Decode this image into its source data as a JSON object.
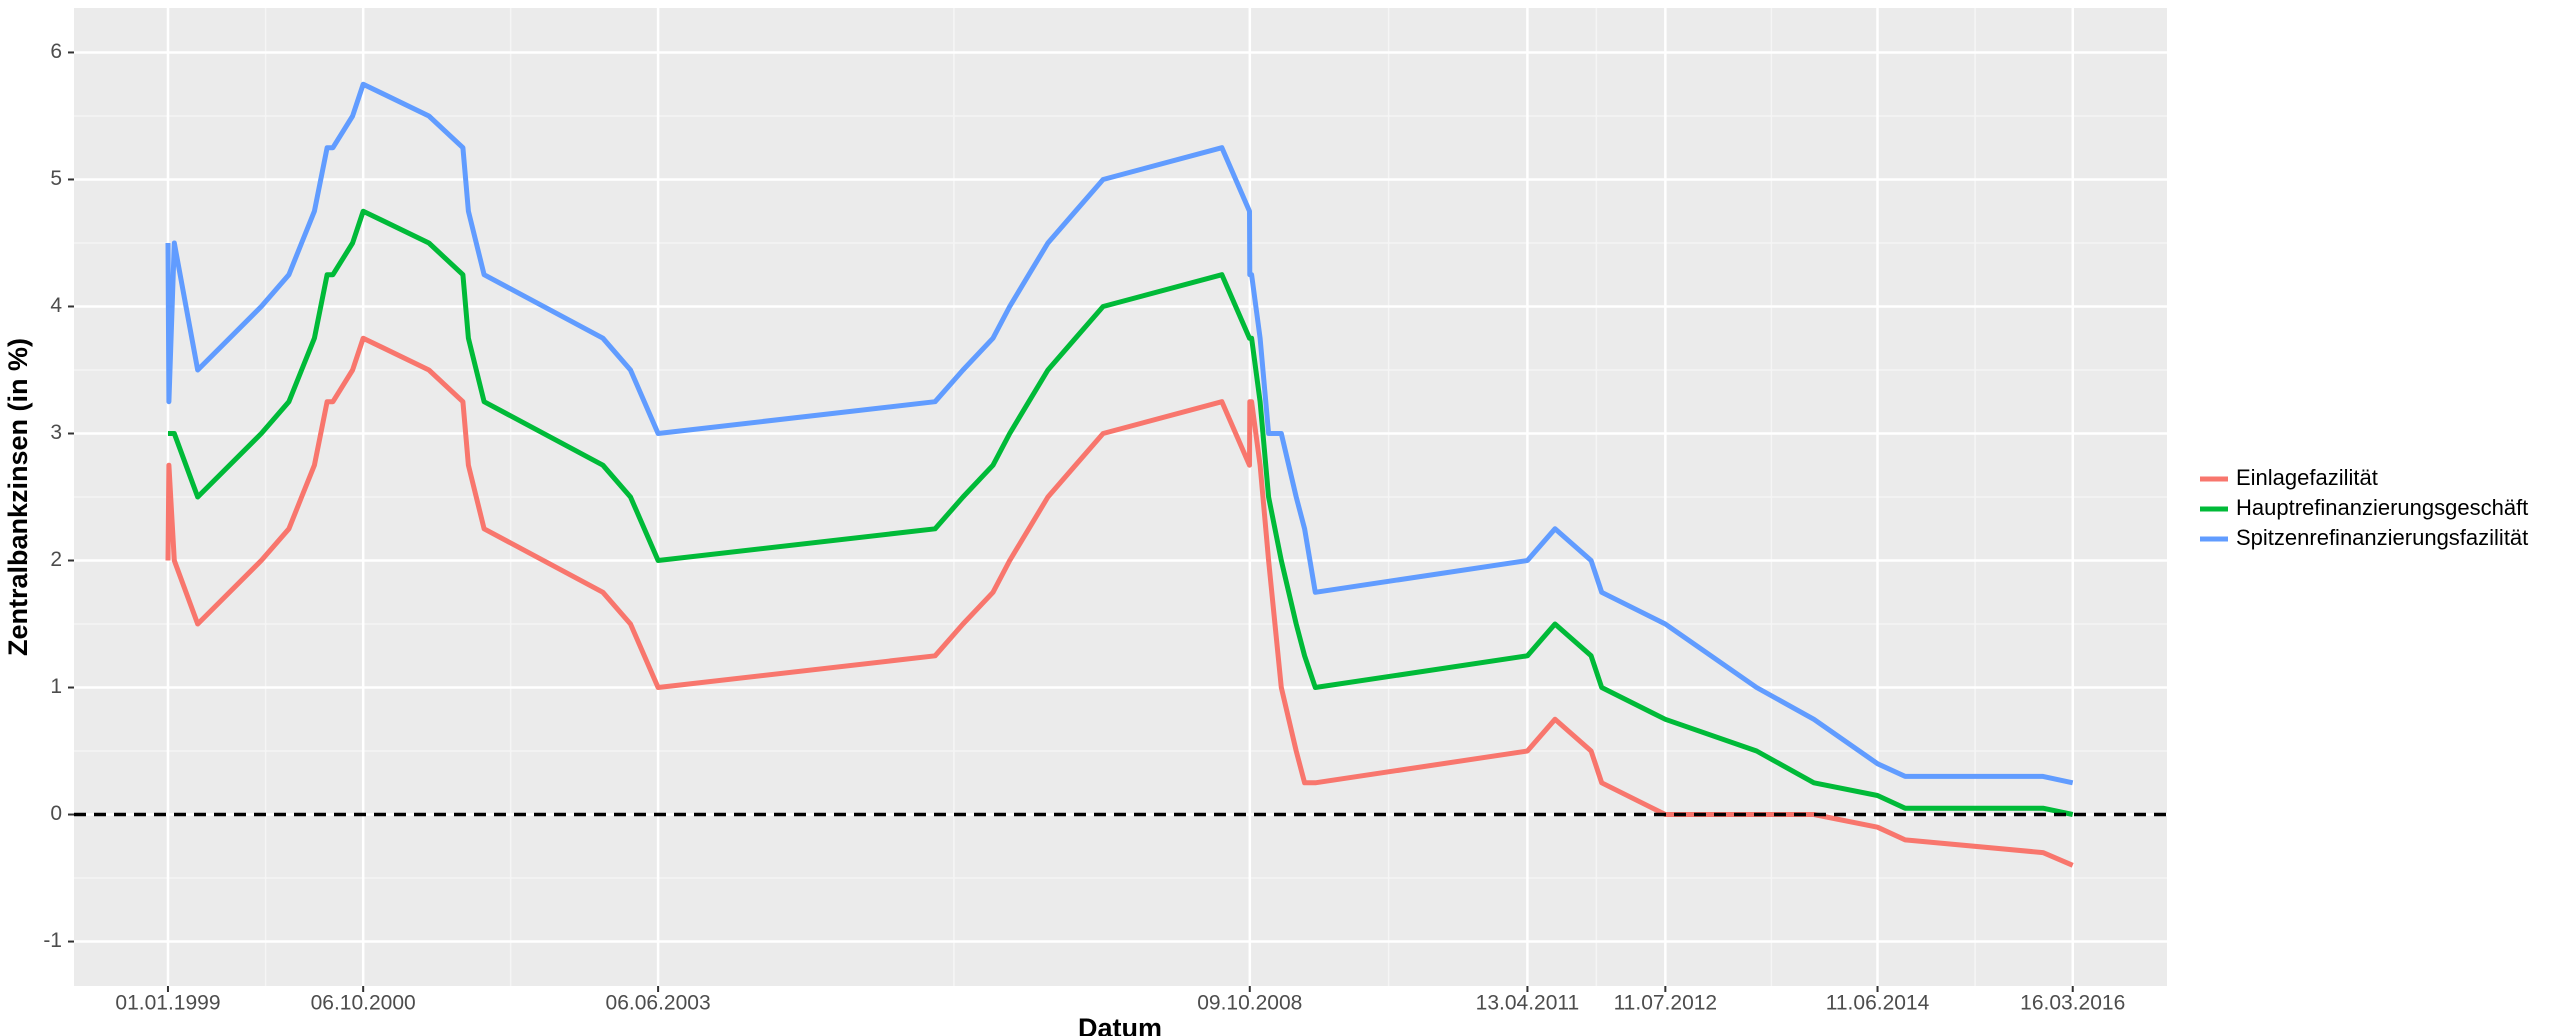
{
  "chart_data": {
    "type": "line",
    "x_label": "Datum",
    "y_label": "Zentralbankzinsen (in %)",
    "x": [
      "01.01.1999",
      "04.01.1999",
      "22.01.1999",
      "09.04.1999",
      "05.11.1999",
      "04.02.2000",
      "17.03.2000",
      "28.04.2000",
      "09.06.2000",
      "28.06.2000",
      "01.09.2000",
      "06.10.2000",
      "11.05.2001",
      "31.08.2001",
      "18.09.2001",
      "09.11.2001",
      "06.12.2002",
      "07.03.2003",
      "06.06.2003",
      "06.12.2005",
      "08.03.2006",
      "15.06.2006",
      "09.08.2006",
      "11.10.2006",
      "13.12.2006",
      "14.03.2007",
      "13.06.2007",
      "09.07.2008",
      "08.10.2008",
      "09.10.2008",
      "15.10.2008",
      "12.11.2008",
      "10.12.2008",
      "21.01.2009",
      "11.03.2009",
      "08.04.2009",
      "13.05.2009",
      "13.04.2011",
      "13.07.2011",
      "09.11.2011",
      "14.12.2011",
      "11.07.2012",
      "08.05.2013",
      "13.11.2013",
      "11.06.2014",
      "10.09.2014",
      "09.12.2015",
      "16.03.2016"
    ],
    "series": [
      {
        "name": "Einlagefazilität",
        "color": "#F8766D",
        "values": [
          2.0,
          2.75,
          2.0,
          1.5,
          2.0,
          2.25,
          2.5,
          2.75,
          3.25,
          3.25,
          3.5,
          3.75,
          3.5,
          3.25,
          2.75,
          2.25,
          1.75,
          1.5,
          1.0,
          1.25,
          1.5,
          1.75,
          2.0,
          2.25,
          2.5,
          2.75,
          3.0,
          3.25,
          2.75,
          3.25,
          3.25,
          2.75,
          2.0,
          1.0,
          0.5,
          0.25,
          0.25,
          0.5,
          0.75,
          0.5,
          0.25,
          0.0,
          0.0,
          0.0,
          -0.1,
          -0.2,
          -0.3,
          -0.4
        ]
      },
      {
        "name": "Hauptrefinanzierungsgeschäft",
        "color": "#00BA38",
        "values": [
          3.0,
          3.0,
          3.0,
          2.5,
          3.0,
          3.25,
          3.5,
          3.75,
          4.25,
          4.25,
          4.5,
          4.75,
          4.5,
          4.25,
          3.75,
          3.25,
          2.75,
          2.5,
          2.0,
          2.25,
          2.5,
          2.75,
          3.0,
          3.25,
          3.5,
          3.75,
          4.0,
          4.25,
          3.75,
          3.75,
          3.75,
          3.25,
          2.5,
          2.0,
          1.5,
          1.25,
          1.0,
          1.25,
          1.5,
          1.25,
          1.0,
          0.75,
          0.5,
          0.25,
          0.15,
          0.05,
          0.05,
          0.0
        ]
      },
      {
        "name": "Spitzenrefinanzierungsfazilität",
        "color": "#619CFF",
        "values": [
          4.5,
          3.25,
          4.5,
          3.5,
          4.0,
          4.25,
          4.5,
          4.75,
          5.25,
          5.25,
          5.5,
          5.75,
          5.5,
          5.25,
          4.75,
          4.25,
          3.75,
          3.5,
          3.0,
          3.25,
          3.5,
          3.75,
          4.0,
          4.25,
          4.5,
          4.75,
          5.0,
          5.25,
          4.75,
          4.25,
          4.25,
          3.75,
          3.0,
          3.0,
          2.5,
          2.25,
          1.75,
          2.0,
          2.25,
          2.0,
          1.75,
          1.5,
          1.0,
          0.75,
          0.4,
          0.3,
          0.3,
          0.25
        ]
      }
    ],
    "xlim": [
      "25.02.1998",
      "21.01.2017"
    ],
    "xticks": [
      "01.01.1999",
      "06.10.2000",
      "06.06.2003",
      "09.10.2008",
      "13.04.2011",
      "11.07.2012",
      "11.06.2014",
      "16.03.2016"
    ],
    "ylim": [
      -1.35,
      6.35
    ],
    "yticks": [
      -1,
      0,
      1,
      2,
      3,
      4,
      5,
      6
    ],
    "hline": 0,
    "grid": true,
    "legend": "right"
  }
}
